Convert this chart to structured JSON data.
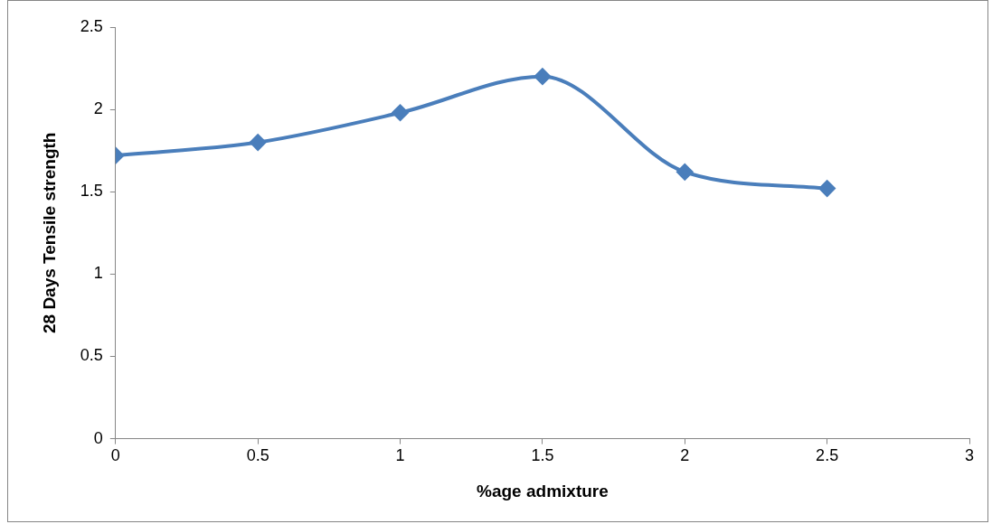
{
  "chart_data": {
    "type": "line",
    "xlabel": "%age admixture",
    "ylabel": "28 Days Tensile strength",
    "x": [
      0,
      0.5,
      1,
      1.5,
      2,
      2.5
    ],
    "series": [
      {
        "color": "#4a7ebb",
        "values": [
          1.72,
          1.8,
          1.98,
          2.2,
          1.62,
          1.52
        ]
      }
    ],
    "xlim": [
      0,
      3
    ],
    "xticks": [
      0,
      0.5,
      1,
      1.5,
      2,
      2.5,
      3
    ],
    "ylim": [
      0,
      2.5
    ],
    "yticks": [
      0,
      0.5,
      1,
      1.5,
      2,
      2.5
    ],
    "grid": false,
    "legend": false,
    "marker": "diamond",
    "line_style": "solid"
  }
}
